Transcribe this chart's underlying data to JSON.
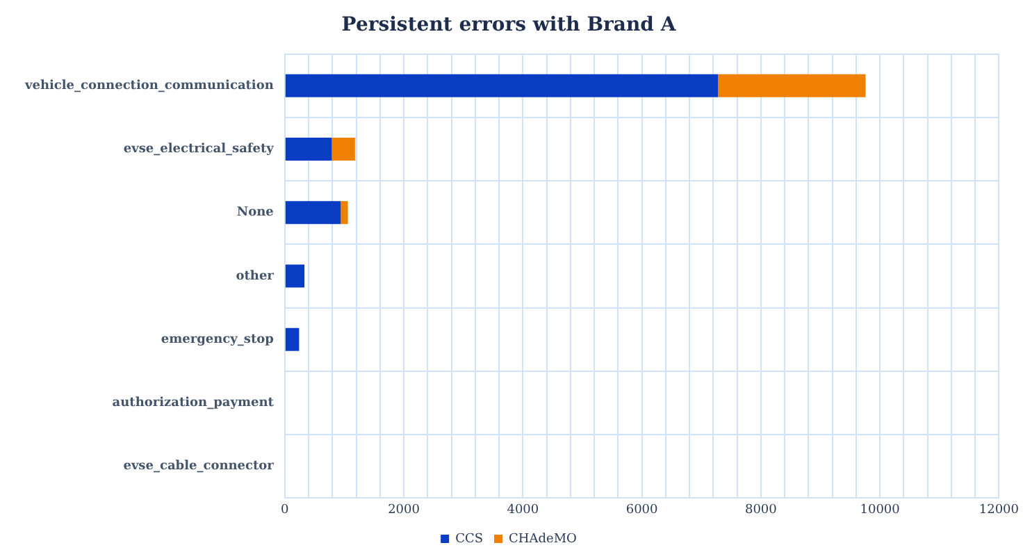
{
  "chart_data": {
    "type": "bar",
    "orientation": "horizontal",
    "stacked": true,
    "title": "Persistent errors with Brand A",
    "categories": [
      "vehicle_connection_communication",
      "evse_electrical_safety",
      "None",
      "other",
      "emergency_stop",
      "authorization_payment",
      "evse_cable_connector"
    ],
    "series": [
      {
        "name": "CCS",
        "color": "#0b3cc4",
        "values": [
          7280,
          790,
          940,
          330,
          240,
          0,
          0
        ]
      },
      {
        "name": "CHAdeMO",
        "color": "#f08000",
        "values": [
          2480,
          390,
          120,
          0,
          0,
          0,
          0
        ]
      }
    ],
    "xlim": [
      0,
      12000
    ],
    "xticks": [
      0,
      {
        "value": 400,
        "label": null
      },
      {
        "value": 800,
        "label": null
      },
      {
        "value": 1200,
        "label": null
      },
      {
        "value": 1600,
        "label": null
      },
      2000,
      {
        "value": 2400,
        "label": null
      },
      {
        "value": 2800,
        "label": null
      },
      {
        "value": 3200,
        "label": null
      },
      {
        "value": 3600,
        "label": null
      },
      4000,
      {
        "value": 4400,
        "label": null
      },
      {
        "value": 4800,
        "label": null
      },
      {
        "value": 5200,
        "label": null
      },
      {
        "value": 5600,
        "label": null
      },
      6000,
      {
        "value": 6400,
        "label": null
      },
      {
        "value": 6800,
        "label": null
      },
      {
        "value": 7200,
        "label": null
      },
      {
        "value": 7600,
        "label": null
      },
      8000,
      {
        "value": 8400,
        "label": null
      },
      {
        "value": 8800,
        "label": null
      },
      {
        "value": 9200,
        "label": null
      },
      {
        "value": 9600,
        "label": null
      },
      10000,
      {
        "value": 10400,
        "label": null
      },
      {
        "value": 10800,
        "label": null
      },
      {
        "value": 11200,
        "label": null
      },
      {
        "value": 11600,
        "label": null
      },
      12000
    ],
    "grid": true,
    "legend": "bottom"
  }
}
